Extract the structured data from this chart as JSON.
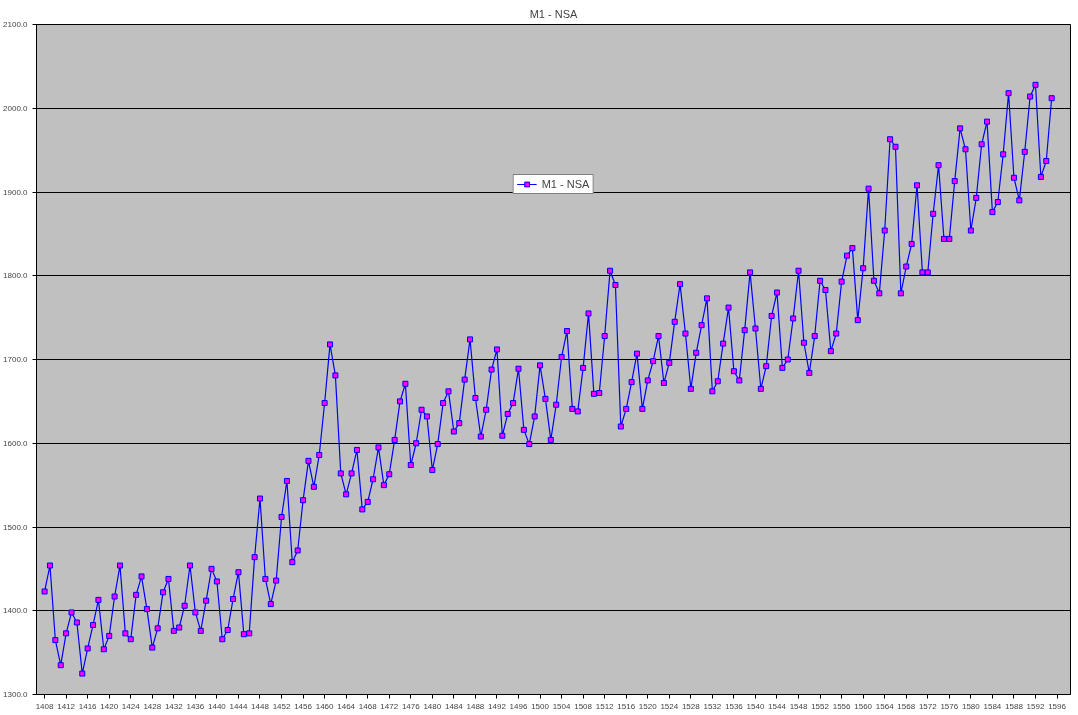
{
  "chart_data": {
    "type": "line",
    "title": "M1 - NSA",
    "x": [
      1408,
      1409,
      1410,
      1411,
      1412,
      1413,
      1414,
      1415,
      1416,
      1417,
      1418,
      1419,
      1420,
      1421,
      1422,
      1423,
      1424,
      1425,
      1426,
      1427,
      1428,
      1429,
      1430,
      1431,
      1432,
      1433,
      1434,
      1435,
      1436,
      1437,
      1438,
      1439,
      1440,
      1441,
      1442,
      1443,
      1444,
      1445,
      1446,
      1447,
      1448,
      1449,
      1450,
      1451,
      1452,
      1453,
      1454,
      1455,
      1456,
      1457,
      1458,
      1459,
      1460,
      1461,
      1462,
      1463,
      1464,
      1465,
      1466,
      1467,
      1468,
      1469,
      1470,
      1471,
      1472,
      1473,
      1474,
      1475,
      1476,
      1477,
      1478,
      1479,
      1480,
      1481,
      1482,
      1483,
      1484,
      1485,
      1486,
      1487,
      1488,
      1489,
      1490,
      1491,
      1492,
      1493,
      1494,
      1495,
      1496,
      1497,
      1498,
      1499,
      1500,
      1501,
      1502,
      1503,
      1504,
      1505,
      1506,
      1507,
      1508,
      1509,
      1510,
      1511,
      1512,
      1513,
      1514,
      1515,
      1516,
      1517,
      1518,
      1519,
      1520,
      1521,
      1522,
      1523,
      1524,
      1525,
      1526,
      1527,
      1528,
      1529,
      1530,
      1531,
      1532,
      1533,
      1534,
      1535,
      1536,
      1537,
      1538,
      1539,
      1540,
      1541,
      1542,
      1543,
      1544,
      1545,
      1546,
      1547,
      1548,
      1549,
      1550,
      1551,
      1552,
      1553,
      1554,
      1555,
      1556,
      1557,
      1558,
      1559,
      1560,
      1561,
      1562,
      1563,
      1564,
      1565,
      1566,
      1567,
      1568,
      1569,
      1570,
      1571,
      1572,
      1573,
      1574,
      1575,
      1576,
      1577,
      1578,
      1579,
      1580,
      1581,
      1582,
      1583,
      1584,
      1585,
      1586,
      1587,
      1588,
      1589,
      1590,
      1591,
      1592,
      1593,
      1594,
      1595
    ],
    "series": [
      {
        "name": "M1 - NSA",
        "color": "#0000ff",
        "values": [
          1423,
          1454,
          1365,
          1335,
          1373,
          1398,
          1386,
          1325,
          1355,
          1383,
          1413,
          1354,
          1370,
          1417,
          1454,
          1373,
          1366,
          1419,
          1441,
          1402,
          1356,
          1379,
          1422,
          1438,
          1376,
          1380,
          1406,
          1454,
          1398,
          1376,
          1412,
          1450,
          1435,
          1366,
          1377,
          1414,
          1446,
          1372,
          1373,
          1464,
          1534,
          1438,
          1408,
          1436,
          1512,
          1555,
          1458,
          1472,
          1532,
          1579,
          1548,
          1586,
          1648,
          1718,
          1681,
          1564,
          1539,
          1564,
          1592,
          1521,
          1530,
          1557,
          1595,
          1550,
          1563,
          1604,
          1650,
          1671,
          1574,
          1600,
          1640,
          1632,
          1568,
          1599,
          1648,
          1662,
          1614,
          1624,
          1676,
          1724,
          1654,
          1608,
          1640,
          1688,
          1712,
          1609,
          1635,
          1648,
          1689,
          1616,
          1599,
          1632,
          1693,
          1653,
          1604,
          1646,
          1703,
          1734,
          1641,
          1638,
          1690,
          1755,
          1659,
          1660,
          1728,
          1806,
          1789,
          1620,
          1641,
          1673,
          1707,
          1641,
          1675,
          1698,
          1728,
          1672,
          1696,
          1745,
          1790,
          1731,
          1665,
          1708,
          1741,
          1773,
          1662,
          1674,
          1719,
          1762,
          1686,
          1675,
          1735,
          1804,
          1737,
          1665,
          1692,
          1752,
          1780,
          1690,
          1700,
          1749,
          1806,
          1720,
          1684,
          1728,
          1794,
          1783,
          1710,
          1731,
          1793,
          1824,
          1833,
          1747,
          1809,
          1904,
          1794,
          1779,
          1854,
          1963,
          1954,
          1779,
          1811,
          1838,
          1908,
          1804,
          1804,
          1874,
          1932,
          1844,
          1844,
          1913,
          1976,
          1951,
          1854,
          1893,
          1957,
          1984,
          1876,
          1888,
          1945,
          2018,
          1917,
          1890,
          1948,
          2014,
          2028,
          1918,
          1937,
          2012
        ]
      }
    ],
    "xlim": [
      1406.5,
      1598.5
    ],
    "xticks": [
      1408,
      1412,
      1416,
      1420,
      1424,
      1428,
      1432,
      1436,
      1440,
      1444,
      1448,
      1452,
      1456,
      1460,
      1464,
      1468,
      1472,
      1476,
      1480,
      1484,
      1488,
      1492,
      1496,
      1500,
      1504,
      1508,
      1512,
      1516,
      1520,
      1524,
      1528,
      1532,
      1536,
      1540,
      1544,
      1548,
      1552,
      1556,
      1560,
      1564,
      1568,
      1572,
      1576,
      1580,
      1584,
      1588,
      1592,
      1596
    ],
    "ylim": [
      1300,
      2100
    ],
    "yticks": [
      {
        "value": 1300,
        "label": "1300.0"
      },
      {
        "value": 1400,
        "label": "1400.0"
      },
      {
        "value": 1500,
        "label": "1500.0"
      },
      {
        "value": 1600,
        "label": "1600.0"
      },
      {
        "value": 1700,
        "label": "1700.0"
      },
      {
        "value": 1800,
        "label": "1800.0"
      },
      {
        "value": 1900,
        "label": "1900.0"
      },
      {
        "value": 2000,
        "label": "2000.0"
      },
      {
        "value": 2100,
        "label": "2100.0"
      }
    ],
    "grid": "y",
    "legend": "top",
    "marker": "square",
    "line_style": "solid"
  }
}
